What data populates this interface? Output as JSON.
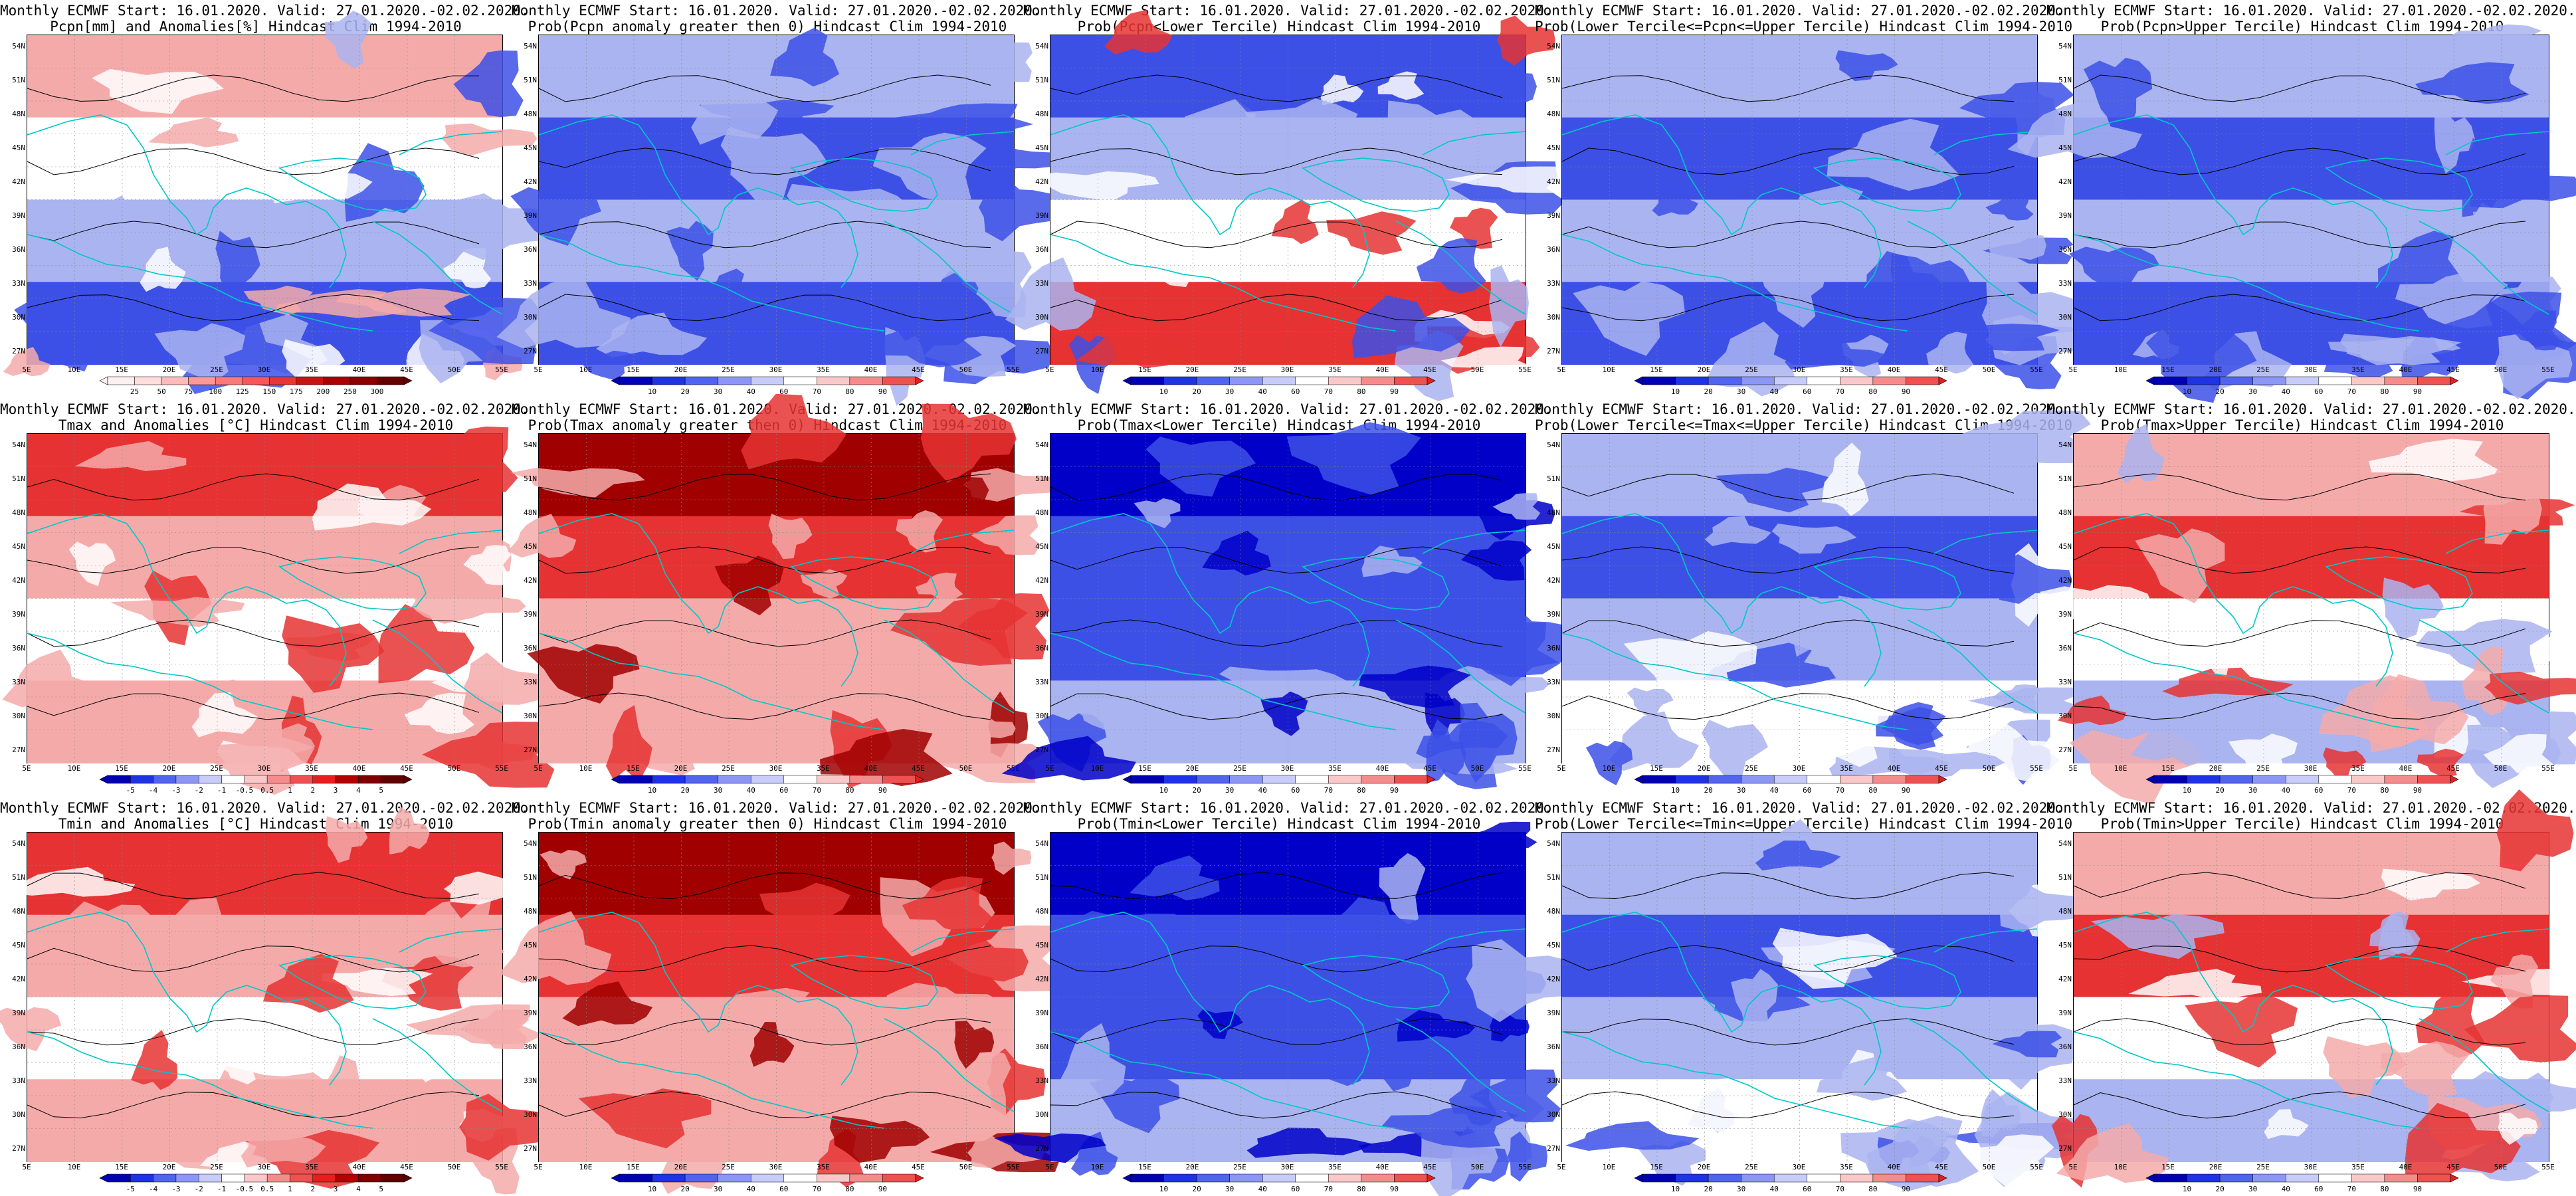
{
  "lat_labels": [
    "54N",
    "51N",
    "48N",
    "45N",
    "42N",
    "39N",
    "36N",
    "33N",
    "30N",
    "27N"
  ],
  "lon_labels": [
    "5E",
    "10E",
    "15E",
    "20E",
    "25E",
    "30E",
    "35E",
    "40E",
    "45E",
    "50E",
    "55E"
  ],
  "colorbars": {
    "prob": [
      "10",
      "20",
      "30",
      "40",
      "60",
      "70",
      "80",
      "90"
    ],
    "temp": [
      "-5",
      "-4",
      "-3",
      "-2",
      "-1",
      "-0.5",
      "0.5",
      "1",
      "2",
      "3",
      "4",
      "5"
    ],
    "pcpn": [
      "25",
      "50",
      "75",
      "100",
      "125",
      "150",
      "175",
      "200",
      "250",
      "300"
    ]
  },
  "colors": {
    "deep_blue": "#0000c8",
    "blue": "#3c50e6",
    "light_blue": "#aab4f0",
    "white": "#ffffff",
    "light_red": "#f5aaaa",
    "red": "#e63232",
    "dark_red": "#a00000",
    "coast": "#00c8c8",
    "contour": "#000000"
  },
  "panels": [
    {
      "title1": "Monthly ECMWF Start: 16.01.2020. Valid: 27.01.2020.-02.02.2020.",
      "title2": "Pcpn[mm] and Anomalies[%] Hindcast Clim 1994-2010",
      "cbar": "pcpn",
      "tone": "mixed_pcpn"
    },
    {
      "title1": "Monthly ECMWF Start: 16.01.2020. Valid: 27.01.2020.-02.02.2020.",
      "title2": "Prob(Pcpn anomaly greater then 0) Hindcast Clim 1994-2010",
      "cbar": "prob",
      "tone": "mixed_blue"
    },
    {
      "title1": "Monthly ECMWF Start: 16.01.2020. Valid: 27.01.2020.-02.02.2020.",
      "title2": "Prob(Pcpn<Lower Tercile) Hindcast Clim 1994-2010",
      "cbar": "prob",
      "tone": "blue_top_red_bottom"
    },
    {
      "title1": "Monthly ECMWF Start: 16.01.2020. Valid: 27.01.2020.-02.02.2020.",
      "title2": "Prob(Lower Tercile<=Pcpn<=Upper Tercile) Hindcast Clim 1994-2010",
      "cbar": "prob",
      "tone": "mixed_blue"
    },
    {
      "title1": "Monthly ECMWF Start: 16.01.2020. Valid: 27.01.2020.-02.02.2020.",
      "title2": "Prob(Pcpn>Upper Tercile) Hindcast Clim 1994-2010",
      "cbar": "prob",
      "tone": "mixed_blue"
    },
    {
      "title1": "Monthly ECMWF Start: 16.01.2020. Valid: 27.01.2020.-02.02.2020.",
      "title2": "Tmax and Anomalies [°C] Hindcast Clim 1994-2010",
      "cbar": "temp",
      "tone": "red_top"
    },
    {
      "title1": "Monthly ECMWF Start: 16.01.2020. Valid: 27.01.2020.-02.02.2020.",
      "title2": "Prob(Tmax anomaly greater then 0) Hindcast Clim 1994-2010",
      "cbar": "prob",
      "tone": "red_full"
    },
    {
      "title1": "Monthly ECMWF Start: 16.01.2020. Valid: 27.01.2020.-02.02.2020.",
      "title2": "Prob(Tmax<Lower Tercile) Hindcast Clim 1994-2010",
      "cbar": "prob",
      "tone": "blue_full"
    },
    {
      "title1": "Monthly ECMWF Start: 16.01.2020. Valid: 27.01.2020.-02.02.2020.",
      "title2": "Prob(Lower Tercile<=Tmax<=Upper Tercile) Hindcast Clim 1994-2010",
      "cbar": "prob",
      "tone": "blue_top_light"
    },
    {
      "title1": "Monthly ECMWF Start: 16.01.2020. Valid: 27.01.2020.-02.02.2020.",
      "title2": "Prob(Tmax>Upper Tercile) Hindcast Clim 1994-2010",
      "cbar": "prob",
      "tone": "red_top_light"
    },
    {
      "title1": "Monthly ECMWF Start: 16.01.2020. Valid: 27.01.2020.-02.02.2020.",
      "title2": "Tmin and Anomalies [°C] Hindcast Clim 1994-2010",
      "cbar": "temp",
      "tone": "red_top"
    },
    {
      "title1": "Monthly ECMWF Start: 16.01.2020. Valid: 27.01.2020.-02.02.2020.",
      "title2": "Prob(Tmin anomaly greater then 0) Hindcast Clim 1994-2010",
      "cbar": "prob",
      "tone": "red_full"
    },
    {
      "title1": "Monthly ECMWF Start: 16.01.2020. Valid: 27.01.2020.-02.02.2020.",
      "title2": "Prob(Tmin<Lower Tercile) Hindcast Clim 1994-2010",
      "cbar": "prob",
      "tone": "blue_full"
    },
    {
      "title1": "Monthly ECMWF Start: 16.01.2020. Valid: 27.01.2020.-02.02.2020.",
      "title2": "Prob(Lower Tercile<=Tmin<=Upper Tercile) Hindcast Clim 1994-2010",
      "cbar": "prob",
      "tone": "blue_top_light"
    },
    {
      "title1": "Monthly ECMWF Start: 16.01.2020. Valid: 27.01.2020.-02.02.2020.",
      "title2": "Prob(Tmin>Upper Tercile) Hindcast Clim 1994-2010",
      "cbar": "prob",
      "tone": "red_top_light"
    }
  ]
}
